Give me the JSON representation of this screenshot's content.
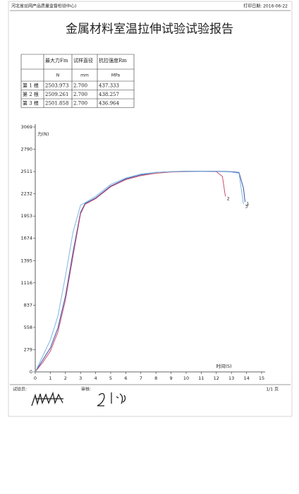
{
  "header": {
    "org": "河北省丝网产品质量监督检验中心)",
    "print_date": "打印日期: 2016-06-22"
  },
  "title": "金属材料室温拉伸试验试验报告",
  "table": {
    "header": [
      "",
      "最大力Fm",
      "试样直径",
      "抗拉强度Rm"
    ],
    "units": [
      "",
      "N",
      "mm",
      "MPa"
    ],
    "rows": [
      [
        "第 1 根",
        "2503.973",
        "2.700",
        "437.333"
      ],
      [
        "第 2 根",
        "2509.261",
        "2.700",
        "438.257"
      ],
      [
        "第 3 根",
        "2501.858",
        "2.700",
        "436.964"
      ]
    ]
  },
  "chart_data": {
    "type": "line",
    "y_label": "力(N)",
    "x_label": "时间(S)",
    "xlim": [
      0,
      15
    ],
    "xticks": [
      0,
      1,
      2,
      3,
      4,
      5,
      6,
      7,
      8,
      9,
      10,
      11,
      12,
      13,
      14,
      15
    ],
    "ylim": [
      0,
      3069
    ],
    "yticks": [
      0,
      279,
      558,
      837,
      1116,
      1395,
      1674,
      1953,
      2232,
      2511,
      2790,
      3069
    ],
    "series": [
      {
        "name": "1",
        "color": "#3a4fa8",
        "x": [
          0,
          0.5,
          1,
          1.5,
          2,
          2.5,
          3,
          3.3,
          4,
          5,
          6,
          7,
          8,
          9,
          10,
          11,
          12,
          13,
          13.5,
          13.8,
          13.9
        ],
        "values": [
          0,
          150,
          300,
          550,
          950,
          1500,
          2000,
          2110,
          2180,
          2330,
          2420,
          2470,
          2500,
          2510,
          2515,
          2515,
          2515,
          2510,
          2500,
          2300,
          2130
        ]
      },
      {
        "name": "2",
        "color": "#c8506e",
        "x": [
          0,
          0.5,
          1,
          1.5,
          2,
          2.5,
          3,
          3.3,
          4,
          5,
          6,
          7,
          8,
          9,
          10,
          11,
          12,
          12.4,
          12.6
        ],
        "values": [
          0,
          120,
          260,
          500,
          900,
          1450,
          1980,
          2100,
          2170,
          2320,
          2410,
          2460,
          2490,
          2505,
          2510,
          2512,
          2510,
          2450,
          2200
        ]
      },
      {
        "name": "3",
        "color": "#7fb6e0",
        "x": [
          0,
          0.5,
          1,
          1.5,
          2,
          2.5,
          3,
          3.3,
          4,
          5,
          6,
          7,
          8,
          9,
          10,
          11,
          12,
          13,
          13.5,
          13.8
        ],
        "values": [
          0,
          200,
          400,
          700,
          1200,
          1750,
          2090,
          2120,
          2200,
          2350,
          2430,
          2480,
          2500,
          2510,
          2512,
          2512,
          2512,
          2505,
          2490,
          2100
        ]
      }
    ]
  },
  "footer": {
    "tester": "试验员:",
    "reviewer": "审核:",
    "page": "1/1 页"
  }
}
